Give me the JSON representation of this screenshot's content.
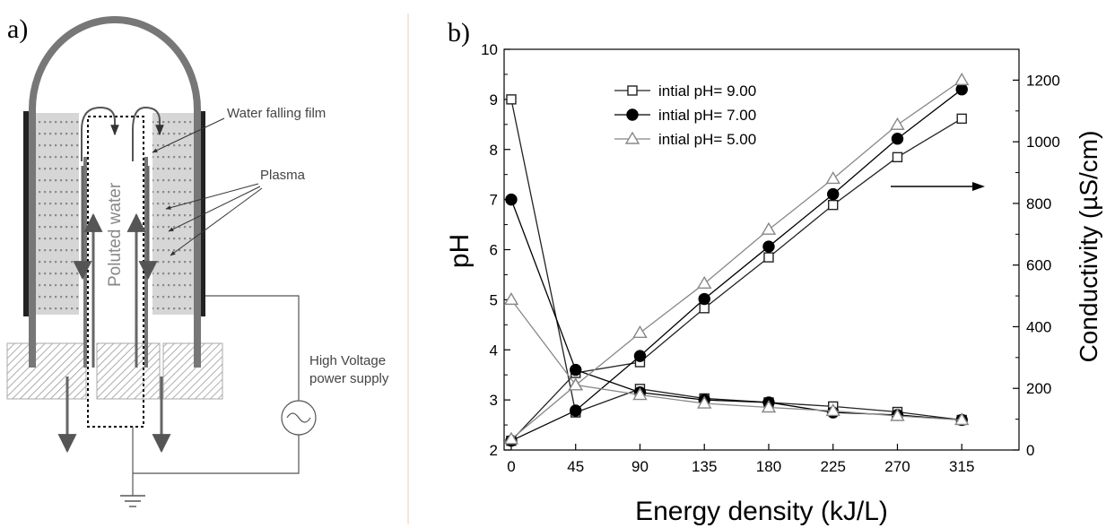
{
  "panel_a": {
    "label": "a)",
    "water_film_label": "Water falling film",
    "plasma_label": "Plasma",
    "water_label": "Poluted water",
    "power_label_line1": "High Voltage",
    "power_label_line2": "power supply"
  },
  "chart_data": {
    "panel_label": "b)",
    "type": "line",
    "xlabel": "Energy density (kJ/L)",
    "ylabel": "pH",
    "y2label": "Conductivity (µS/cm)",
    "x": [
      0,
      45,
      90,
      135,
      180,
      225,
      270,
      315
    ],
    "xticks": [
      "0",
      "45",
      "90",
      "135",
      "180",
      "225",
      "270",
      "315"
    ],
    "xlim": [
      -5,
      355
    ],
    "ylim": [
      2,
      10
    ],
    "yticks": [
      "2",
      "3",
      "4",
      "5",
      "6",
      "7",
      "8",
      "9",
      "10"
    ],
    "y2lim": [
      0,
      1300
    ],
    "y2ticks": [
      "0",
      "200",
      "400",
      "600",
      "800",
      "1000",
      "1200"
    ],
    "legend_position": "top-left",
    "grid": false,
    "series": [
      {
        "name": "intial pH= 9.00",
        "marker": "square",
        "color": "#222222",
        "ph": [
          9.0,
          2.75,
          3.22,
          3.03,
          2.95,
          2.87,
          2.76,
          2.6
        ],
        "conductivity": [
          30,
          250,
          285,
          460,
          625,
          795,
          950,
          1075
        ]
      },
      {
        "name": "intial pH= 7.00",
        "marker": "circle",
        "color": "#000000",
        "ph": [
          7.0,
          3.6,
          3.15,
          3.0,
          2.95,
          2.75,
          2.7,
          2.6
        ],
        "conductivity": [
          30,
          128,
          305,
          490,
          660,
          830,
          1010,
          1170
        ]
      },
      {
        "name": "intial pH= 5.00",
        "marker": "triangle",
        "color": "#888888",
        "ph": [
          5.0,
          3.3,
          3.1,
          2.93,
          2.85,
          2.78,
          2.68,
          2.6
        ],
        "conductivity": [
          35,
          210,
          380,
          540,
          715,
          880,
          1055,
          1200
        ]
      }
    ]
  }
}
